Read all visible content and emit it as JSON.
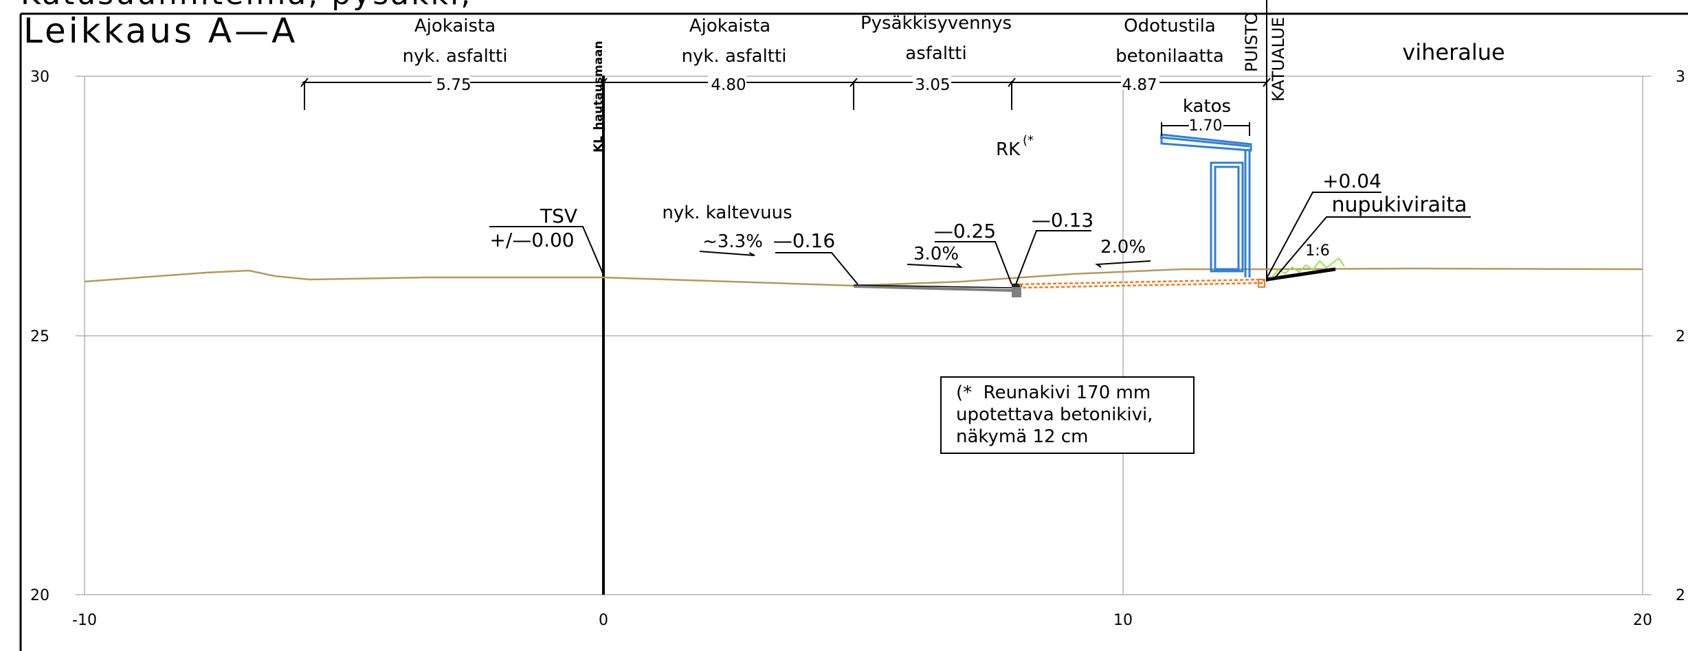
{
  "drawing": {
    "title_partial": "Katusuunnitelma, pysäkki,",
    "title": "Leikkaus A—A"
  },
  "axes": {
    "x_ticks": [
      "-10",
      "0",
      "10",
      "20"
    ],
    "y_ticks_left": [
      "30",
      "25",
      "20"
    ],
    "y_ticks_right": [
      "3",
      "2",
      "2"
    ]
  },
  "zones": [
    {
      "line1": "Ajokaista",
      "line2": "nyk. asfaltti",
      "width": "5.75"
    },
    {
      "line1": "Ajokaista",
      "line2": "nyk. asfaltti",
      "width": "4.80"
    },
    {
      "line1": "Pysäkkisyvennys",
      "line2": "asfaltti",
      "width": "3.05"
    },
    {
      "line1": "Odotustila",
      "line2": "betonilaatta",
      "width": "4.87"
    },
    {
      "line1": "viheralue",
      "line2": "",
      "width": ""
    }
  ],
  "vertical_labels": {
    "puisto": "PUISTO",
    "katualue": "KATUALUE",
    "centerline": "KL_hautausmaan"
  },
  "shelter": {
    "label": "katos",
    "width": "1.70"
  },
  "annotations": {
    "rk": "RK",
    "rk_sup": "(*",
    "tsv": "TSV",
    "tsv_value": "+/—0.00",
    "existing_slope": "nyk. kaltevuus",
    "slope_1": "~3.3%",
    "elev_1": "—0.16",
    "elev_2": "—0.25",
    "slope_2": "3.0%",
    "elev_3": "—0.13",
    "slope_3": "2.0%",
    "elev_4": "+0.04",
    "cobble": "nupukiviraita",
    "slope_4": "1:6"
  },
  "note": {
    "line1": "(*  Reunakivi 170 mm",
    "line2": "upotettava betonikivi,",
    "line3": "näkymä 12 cm"
  },
  "colors": {
    "terrain": "#b19a5b",
    "shelter": "#2f7fd6",
    "paving": "#f07a1c",
    "grass": "#9ee04a",
    "curb": "#808080"
  }
}
